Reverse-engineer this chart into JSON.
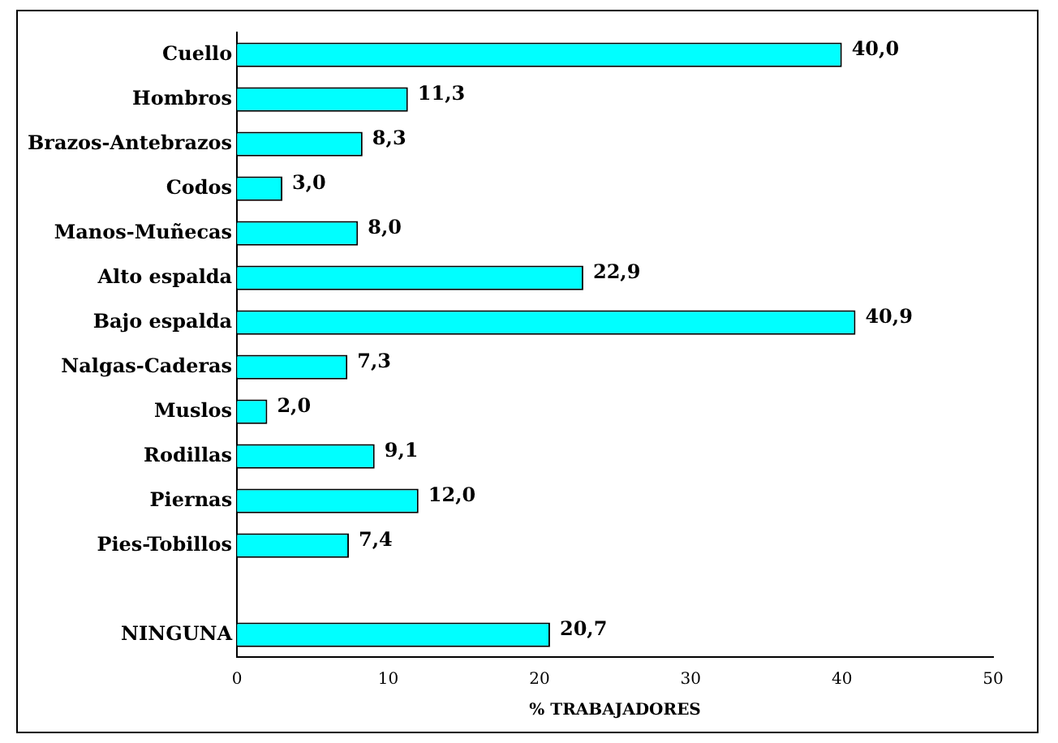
{
  "chart_data": {
    "type": "bar",
    "orientation": "horizontal",
    "categories": [
      "Cuello",
      "Hombros",
      "Brazos-Antebrazos",
      "Codos",
      "Manos-Muñecas",
      "Alto espalda",
      "Bajo espalda",
      "Nalgas-Caderas",
      "Muslos",
      "Rodillas",
      "Piernas",
      "Pies-Tobillos",
      null,
      "NINGUNA"
    ],
    "values": [
      40.0,
      11.3,
      8.3,
      3.0,
      8.0,
      22.9,
      40.9,
      7.3,
      2.0,
      9.1,
      12.0,
      7.4,
      null,
      20.7
    ],
    "value_labels": [
      "40,0",
      "11,3",
      "8,3",
      "3,0",
      "8,0",
      "22,9",
      "40,9",
      "7,3",
      "2,0",
      "9,1",
      "12,0",
      "7,4",
      null,
      "20,7"
    ],
    "color": "#00ffff",
    "xlabel": "% TRABAJADORES",
    "xlim": [
      0,
      50
    ],
    "xticks": [
      0,
      10,
      20,
      30,
      40,
      50
    ],
    "grid": false,
    "legend": false
  }
}
